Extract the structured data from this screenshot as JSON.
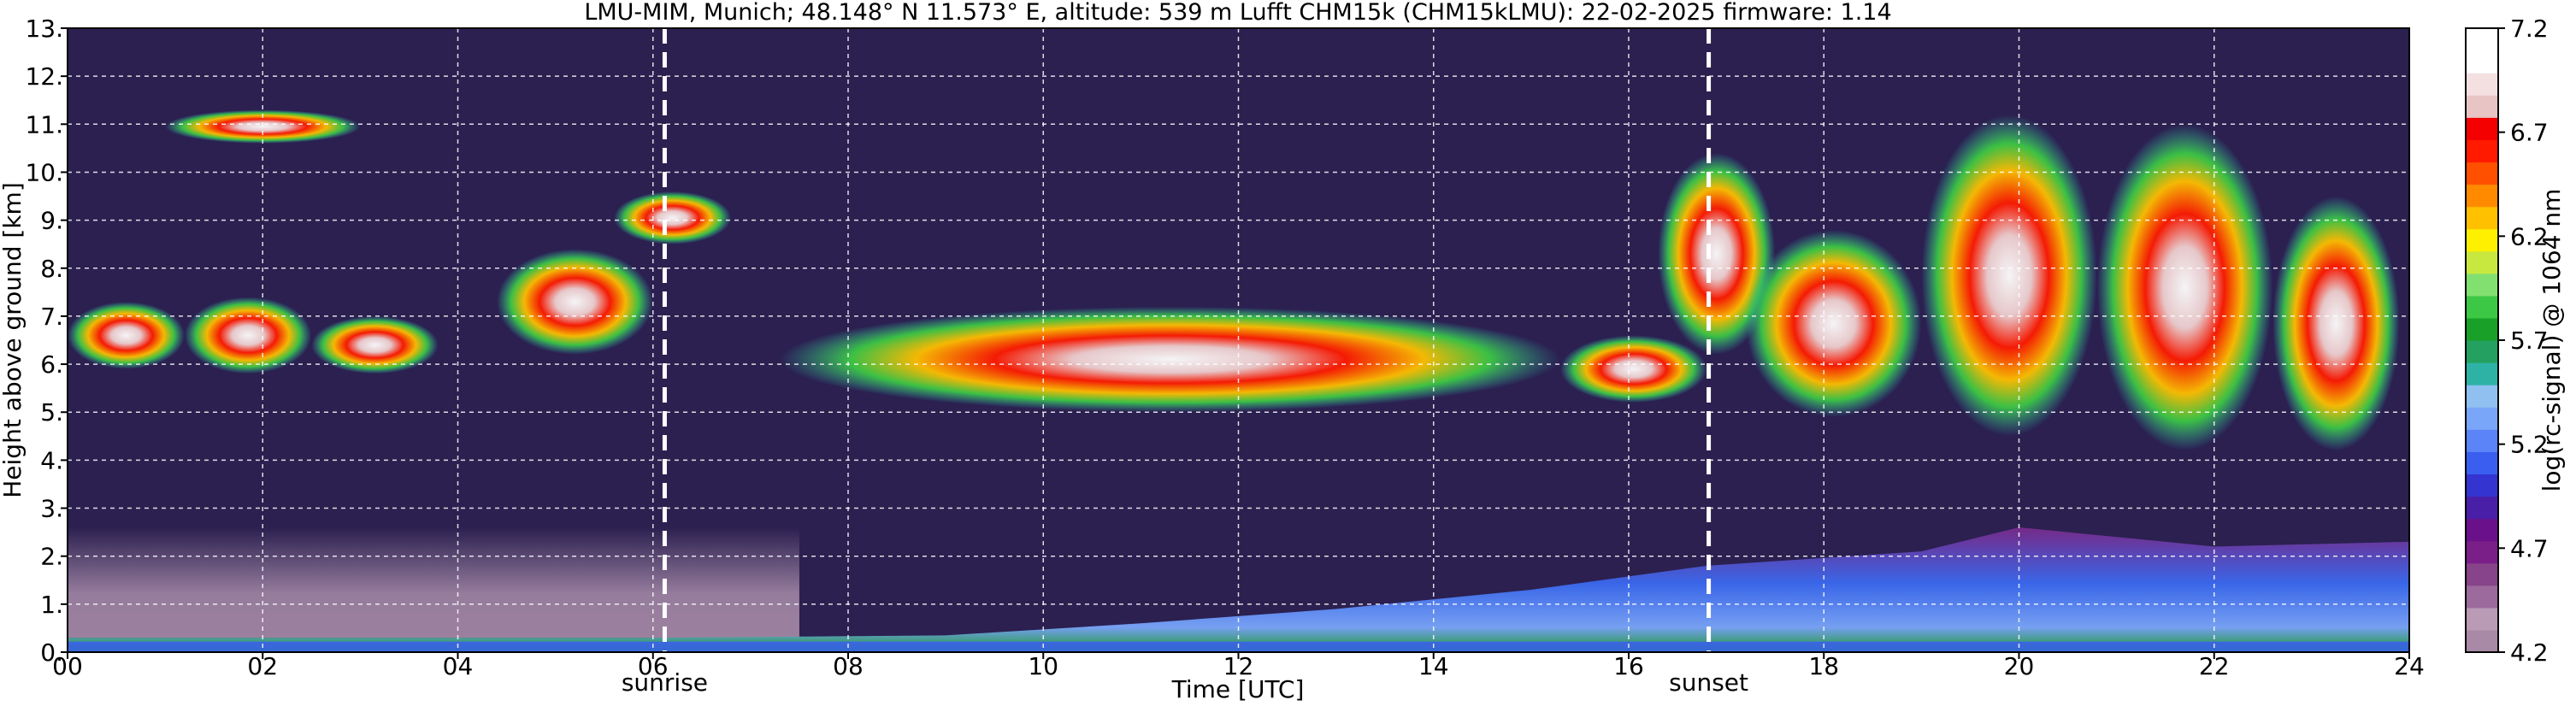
{
  "chart_data": {
    "type": "heatmap",
    "title": "LMU-MIM, Munich; 48.148° N 11.573° E, altitude: 539 m    Lufft CHM15k (CHM15kLMU): 22-02-2025    firmware: 1.14",
    "xlabel": "Time [UTC]",
    "ylabel": "Height above ground [km]",
    "colorbar_label": "log(rc-signal) @ 1064 nm",
    "xlim": [
      0,
      24
    ],
    "ylim": [
      0,
      13
    ],
    "clim": [
      4.2,
      7.2
    ],
    "x_ticks": [
      0,
      2,
      4,
      6,
      8,
      10,
      12,
      14,
      16,
      18,
      20,
      22,
      24
    ],
    "x_tick_labels": [
      "00",
      "02",
      "04",
      "06",
      "08",
      "10",
      "12",
      "14",
      "16",
      "18",
      "20",
      "22",
      "24"
    ],
    "y_ticks": [
      0,
      1,
      2,
      3,
      4,
      5,
      6,
      7,
      8,
      9,
      10,
      11,
      12,
      13
    ],
    "y_tick_labels": [
      "0.",
      "1.",
      "2.",
      "3.",
      "4.",
      "5.",
      "6.",
      "7.",
      "8.",
      "9.",
      "10.",
      "11.",
      "12.",
      "13."
    ],
    "colorbar_ticks": [
      4.2,
      4.7,
      5.2,
      5.7,
      6.2,
      6.7,
      7.2
    ],
    "colorbar_tick_labels": [
      "4.2",
      "4.7",
      "5.2",
      "5.7",
      "6.2",
      "6.7",
      "7.2"
    ],
    "colorbar_colors": [
      "#a88aa6",
      "#b99bb6",
      "#9c6a9c",
      "#88448a",
      "#7a1f88",
      "#6a108a",
      "#4a1fa8",
      "#3434d0",
      "#3a5ef0",
      "#5a84f8",
      "#7aa6fa",
      "#8fc0f0",
      "#2fb2a6",
      "#24a060",
      "#18a028",
      "#3cc844",
      "#82e070",
      "#c8e840",
      "#fff000",
      "#ffc000",
      "#ff8a00",
      "#ff5000",
      "#ff1a00",
      "#f40000",
      "#e8c4c4",
      "#f4e0e0",
      "#ffffff",
      "#ffffff"
    ],
    "grid": true,
    "markers": [
      {
        "label": "sunrise",
        "x": 6.12
      },
      {
        "label": "sunset",
        "x": 16.82
      }
    ],
    "background_color": "#2b2050",
    "cloud_layers": [
      {
        "t_start": 0.0,
        "t_end": 1.2,
        "z_bottom": 5.9,
        "z_top": 7.3
      },
      {
        "t_start": 1.2,
        "t_end": 2.5,
        "z_bottom": 5.8,
        "z_top": 7.4
      },
      {
        "t_start": 2.5,
        "t_end": 3.8,
        "z_bottom": 5.8,
        "z_top": 7.0
      },
      {
        "t_start": 1.0,
        "t_end": 3.0,
        "z_bottom": 10.6,
        "z_top": 11.3
      },
      {
        "t_start": 4.4,
        "t_end": 6.0,
        "z_bottom": 6.2,
        "z_top": 8.4
      },
      {
        "t_start": 5.6,
        "t_end": 6.8,
        "z_bottom": 8.5,
        "z_top": 9.6
      },
      {
        "t_start": 7.3,
        "t_end": 15.3,
        "z_bottom": 5.0,
        "z_top": 7.2
      },
      {
        "t_start": 15.3,
        "t_end": 16.8,
        "z_bottom": 5.2,
        "z_top": 6.6
      },
      {
        "t_start": 16.3,
        "t_end": 17.5,
        "z_bottom": 6.2,
        "z_top": 10.4
      },
      {
        "t_start": 17.2,
        "t_end": 19.0,
        "z_bottom": 4.9,
        "z_top": 8.8
      },
      {
        "t_start": 19.0,
        "t_end": 20.8,
        "z_bottom": 4.5,
        "z_top": 11.2
      },
      {
        "t_start": 20.8,
        "t_end": 22.6,
        "z_bottom": 4.2,
        "z_top": 11.0
      },
      {
        "t_start": 22.6,
        "t_end": 23.9,
        "z_bottom": 4.2,
        "z_top": 9.5
      }
    ],
    "boundary_layer": [
      {
        "t": 0,
        "top": 0.3
      },
      {
        "t": 6,
        "top": 0.3
      },
      {
        "t": 9,
        "top": 0.35
      },
      {
        "t": 11,
        "top": 0.6
      },
      {
        "t": 13,
        "top": 0.9
      },
      {
        "t": 15,
        "top": 1.3
      },
      {
        "t": 16.8,
        "top": 1.8
      },
      {
        "t": 19,
        "top": 2.1
      },
      {
        "t": 20,
        "top": 2.6
      },
      {
        "t": 22,
        "top": 2.2
      },
      {
        "t": 24,
        "top": 2.3
      }
    ]
  }
}
